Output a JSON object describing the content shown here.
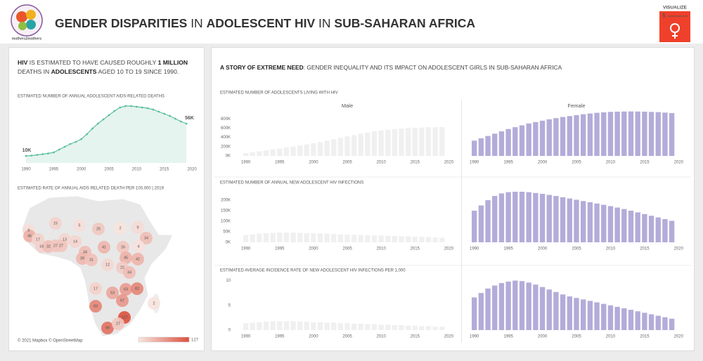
{
  "header": {
    "logo_text": "mothers2mothers",
    "title": [
      "GENDER DISPARITIES",
      " IN ",
      "ADOLESCENT HIV",
      " IN ",
      "SUB-SAHARAN AFRICA"
    ],
    "badge": {
      "label": "VISUALIZE",
      "number": "5",
      "text": "GENDER EQUALITY"
    }
  },
  "summary": [
    [
      "HIV",
      " IS ESTIMATED TO HAVE CAUSED ROUGHLY ",
      "1 MILLION"
    ],
    [
      "DEATHS IN ",
      "ADOLESCENTS",
      " AGED 10 TO 19 SINCE 1990."
    ]
  ],
  "story": [
    "A STORY OF EXTREME NEED",
    ": GENDER INEQUALITY AND ITS IMPACT ON ADOLESCENT GIRLS IN SUB-SAHARAN AFRICA"
  ],
  "chart_data": [
    {
      "type": "line",
      "title": "ESTIMATED NUMBER OF ANNUAL ADOLESCENT AIDS-RELATED DEATHS",
      "x": [
        1990,
        1991,
        1992,
        1993,
        1994,
        1995,
        1996,
        1997,
        1998,
        1999,
        2000,
        2001,
        2002,
        2003,
        2004,
        2005,
        2006,
        2007,
        2008,
        2009,
        2010,
        2011,
        2012,
        2013,
        2014,
        2015,
        2016,
        2017,
        2018,
        2019
      ],
      "values": [
        10,
        10.5,
        11.5,
        12.5,
        13.5,
        15,
        19,
        23,
        27,
        30,
        34,
        41,
        49,
        56,
        62,
        68,
        74,
        79,
        81,
        81,
        80,
        79,
        78,
        76,
        73,
        70,
        67,
        63,
        59,
        56
      ],
      "value_labels": [
        "10K",
        null,
        null,
        null,
        null,
        null,
        null,
        null,
        null,
        null,
        null,
        null,
        null,
        null,
        null,
        null,
        null,
        null,
        null,
        null,
        null,
        null,
        null,
        null,
        null,
        null,
        null,
        null,
        null,
        "56K"
      ],
      "color": "#5cbf9f",
      "area_color": "#e5f4ee",
      "xlim": [
        1990,
        2020
      ],
      "xticks": [
        1990,
        1995,
        2000,
        2005,
        2010,
        2015,
        2020
      ],
      "ylim": [
        0,
        85
      ]
    },
    {
      "type": "map",
      "title": "ESTIMATED RATE OF ANNUAL AIDS RELATED DEATH PER 100,000 | 2019",
      "values": [
        15,
        5,
        25,
        2,
        9,
        6,
        46,
        17,
        13,
        34,
        16,
        32,
        27,
        27,
        14,
        4,
        41,
        26,
        34,
        39,
        31,
        45,
        42,
        12,
        22,
        34,
        17,
        53,
        63,
        82,
        2,
        67,
        83,
        127,
        99,
        27
      ],
      "clim": [
        0,
        127
      ],
      "colors": [
        "#f7e5e0",
        "#db503e"
      ],
      "credit": "© 2021 Mapbox © OpenStreetMap"
    },
    {
      "type": "bar",
      "title": "ESTIMATED NUMBER OF ADOLESCENTS LIVING WITH HIV",
      "x": [
        1990,
        1991,
        1992,
        1993,
        1994,
        1995,
        1996,
        1997,
        1998,
        1999,
        2000,
        2001,
        2002,
        2003,
        2004,
        2005,
        2006,
        2007,
        2008,
        2009,
        2010,
        2011,
        2012,
        2013,
        2014,
        2015,
        2016,
        2017,
        2018,
        2019
      ],
      "series": [
        {
          "name": "Male",
          "color": "#f0f0f0",
          "values": [
            60000,
            80000,
            100000,
            120000,
            140000,
            160000,
            180000,
            200000,
            225000,
            250000,
            275000,
            300000,
            330000,
            360000,
            390000,
            420000,
            450000,
            480000,
            505000,
            530000,
            550000,
            565000,
            580000,
            590000,
            600000,
            608000,
            614000,
            618000,
            620000,
            622000
          ]
        },
        {
          "name": "Female",
          "color": "#b3acd9",
          "values": [
            330000,
            380000,
            430000,
            480000,
            530000,
            580000,
            620000,
            660000,
            700000,
            730000,
            760000,
            790000,
            815000,
            840000,
            860000,
            880000,
            900000,
            915000,
            930000,
            940000,
            950000,
            955000,
            958000,
            960000,
            958000,
            955000,
            950000,
            945000,
            935000,
            925000
          ]
        }
      ],
      "xlim": [
        1989,
        2021
      ],
      "xticks": [
        1990,
        1995,
        2000,
        2005,
        2010,
        2015,
        2020
      ],
      "ylim": [
        0,
        1000000
      ],
      "yticks": [
        {
          "value": 0,
          "label": "0K"
        },
        {
          "value": 200000,
          "label": "200K"
        },
        {
          "value": 400000,
          "label": "400K"
        },
        {
          "value": 600000,
          "label": "600K"
        },
        {
          "value": 800000,
          "label": "800K"
        }
      ]
    },
    {
      "type": "bar",
      "title": "ESTIMATED NUMBER OF ANNUAL NEW ADOLESCENT HIV INFECTIONS",
      "x": [
        1990,
        1991,
        1992,
        1993,
        1994,
        1995,
        1996,
        1997,
        1998,
        1999,
        2000,
        2001,
        2002,
        2003,
        2004,
        2005,
        2006,
        2007,
        2008,
        2009,
        2010,
        2011,
        2012,
        2013,
        2014,
        2015,
        2016,
        2017,
        2018,
        2019
      ],
      "series": [
        {
          "color": "#f0f0f0",
          "values": [
            35000,
            38000,
            41000,
            43000,
            45000,
            46000,
            46000,
            46000,
            45000,
            44000,
            43000,
            42000,
            41000,
            40000,
            38000,
            37000,
            36000,
            35000,
            34000,
            33000,
            32000,
            31000,
            30000,
            29000,
            28000,
            27000,
            26000,
            25000,
            23000,
            21000
          ]
        },
        {
          "color": "#b3acd9",
          "values": [
            150000,
            175000,
            200000,
            220000,
            232000,
            238000,
            240000,
            240000,
            238000,
            234000,
            230000,
            225000,
            220000,
            214000,
            208000,
            202000,
            196000,
            190000,
            184000,
            178000,
            172000,
            165000,
            158000,
            150000,
            142000,
            134000,
            126000,
            118000,
            110000,
            102000
          ]
        }
      ],
      "xlim": [
        1989,
        2021
      ],
      "xticks": [
        1990,
        1995,
        2000,
        2005,
        2010,
        2015,
        2020
      ],
      "ylim": [
        0,
        250000
      ],
      "yticks": [
        {
          "value": 0,
          "label": "0K"
        },
        {
          "value": 50000,
          "label": "50K"
        },
        {
          "value": 100000,
          "label": "100K"
        },
        {
          "value": 150000,
          "label": "150K"
        },
        {
          "value": 200000,
          "label": "200K"
        }
      ]
    },
    {
      "type": "bar",
      "title": "ESTIMATED AVERAGE INCIDENCE RATE OF NEW ADOLESCENT HIV INFECTIONS PER 1,000",
      "x": [
        1990,
        1991,
        1992,
        1993,
        1994,
        1995,
        1996,
        1997,
        1998,
        1999,
        2000,
        2001,
        2002,
        2003,
        2004,
        2005,
        2006,
        2007,
        2008,
        2009,
        2010,
        2011,
        2012,
        2013,
        2014,
        2015,
        2016,
        2017,
        2018,
        2019
      ],
      "series": [
        {
          "color": "#f0f0f0",
          "values": [
            1.4,
            1.5,
            1.6,
            1.7,
            1.8,
            1.8,
            1.8,
            1.8,
            1.7,
            1.7,
            1.6,
            1.6,
            1.5,
            1.5,
            1.4,
            1.4,
            1.3,
            1.3,
            1.2,
            1.2,
            1.1,
            1.1,
            1.0,
            1.0,
            0.9,
            0.9,
            0.8,
            0.8,
            0.7,
            0.7
          ]
        },
        {
          "color": "#b3acd9",
          "values": [
            6.6,
            7.5,
            8.4,
            9.0,
            9.5,
            9.8,
            10.0,
            9.9,
            9.6,
            9.2,
            8.7,
            8.2,
            7.7,
            7.2,
            6.8,
            6.5,
            6.2,
            5.9,
            5.6,
            5.3,
            5.0,
            4.7,
            4.4,
            4.1,
            3.8,
            3.5,
            3.2,
            2.9,
            2.6,
            2.3
          ]
        }
      ],
      "xlim": [
        1989,
        2021
      ],
      "xticks": [
        1990,
        1995,
        2000,
        2005,
        2010,
        2015,
        2020
      ],
      "ylim": [
        0,
        10.5
      ],
      "yticks": [
        0,
        5,
        10
      ]
    }
  ]
}
